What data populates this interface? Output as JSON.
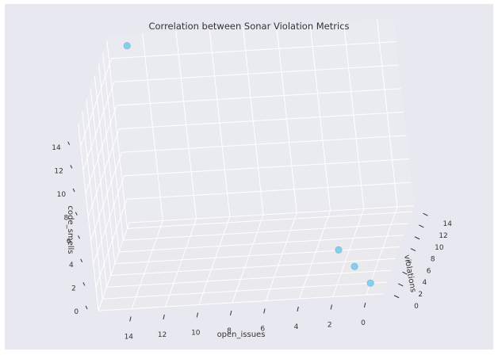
{
  "chart_data": {
    "type": "scatter",
    "title": "Correlation between Sonar Violation Metrics",
    "xlabel": "open_issues",
    "ylabel": "violations",
    "zlabel": "code_smells",
    "x_ticks": [
      0,
      2,
      4,
      6,
      8,
      10,
      12,
      14
    ],
    "y_ticks": [
      0,
      2,
      4,
      6,
      8,
      10,
      12,
      14
    ],
    "z_ticks": [
      0,
      2,
      4,
      6,
      8,
      10,
      12,
      14
    ],
    "xlim": [
      -1,
      16
    ],
    "ylim": [
      0,
      15
    ],
    "zlim": [
      0,
      16
    ],
    "grid": true,
    "projection": "3d",
    "marker_color": "#87ceeb",
    "points": [
      {
        "x": 0,
        "y": 2,
        "z": 0
      },
      {
        "x": 1,
        "y": 3,
        "z": 1
      },
      {
        "x": 2,
        "y": 4,
        "z": 2
      },
      {
        "x": 15,
        "y": 15,
        "z": 15
      }
    ]
  },
  "colors": {
    "figure_bg": "#e8e8f0",
    "pane_floor": "#e9e9ee",
    "pane_wall": "#eaeaf1",
    "grid": "#ffffff"
  }
}
